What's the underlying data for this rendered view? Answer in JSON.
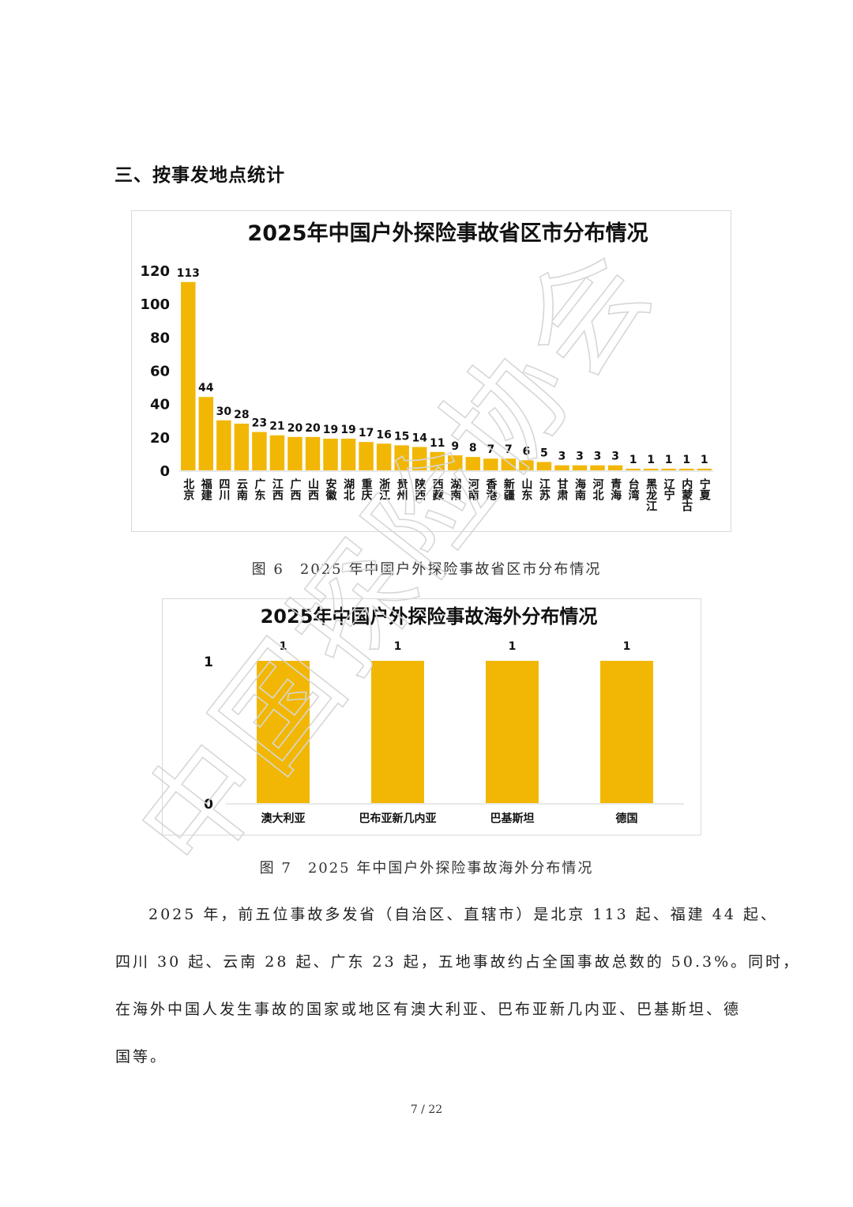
{
  "section_heading": "三、按事发地点统计",
  "figure6": {
    "caption": "图 6　2025 年中国户外探险事故省区市分布情况"
  },
  "figure7": {
    "caption": "图 7　2025 年中国户外探险事故海外分布情况"
  },
  "paragraph_lines": [
    "2025 年，前五位事故多发省（自治区、直辖市）是北京 113 起、福建 44 起、",
    "四川 30 起、云南 28 起、广东 23 起，五地事故约占全国事故总数的 50.3%。同时，",
    "在海外中国人发生事故的国家或地区有澳大利亚、巴布亚新几内亚、巴基斯坦、德",
    "国等。"
  ],
  "page_number": "7 / 22",
  "watermark_text": "中国探险协会",
  "colors": {
    "bar": "#F2B705",
    "axis": "#d0d0d0",
    "text": "#111111"
  },
  "chart_data": [
    {
      "type": "bar",
      "title": "2025年中国户外探险事故省区市分布情况",
      "categories": [
        "北京",
        "福建",
        "四川",
        "云南",
        "广东",
        "江西",
        "广西",
        "山西",
        "安徽",
        "湖北",
        "重庆",
        "浙江",
        "贵州",
        "陕西",
        "西藏",
        "湖南",
        "河南",
        "香港",
        "新疆",
        "山东",
        "江苏",
        "甘肃",
        "海南",
        "河北",
        "青海",
        "台湾",
        "黑龙江",
        "辽宁",
        "内蒙古",
        "宁夏"
      ],
      "values": [
        113,
        44,
        30,
        28,
        23,
        21,
        20,
        20,
        19,
        19,
        17,
        16,
        15,
        14,
        11,
        9,
        8,
        7,
        7,
        6,
        5,
        3,
        3,
        3,
        3,
        1,
        1,
        1,
        1,
        1
      ],
      "yticks": [
        0,
        20,
        40,
        60,
        80,
        100,
        120
      ],
      "ylim": [
        0,
        120
      ],
      "grid": false,
      "legend": "none"
    },
    {
      "type": "bar",
      "title": "2025年中国户外探险事故海外分布情况",
      "categories": [
        "澳大利亚",
        "巴布亚新几内亚",
        "巴基斯坦",
        "德国"
      ],
      "values": [
        1,
        1,
        1,
        1
      ],
      "yticks": [
        0,
        1
      ],
      "ylim": [
        0,
        1
      ],
      "grid": false,
      "legend": "none"
    }
  ]
}
